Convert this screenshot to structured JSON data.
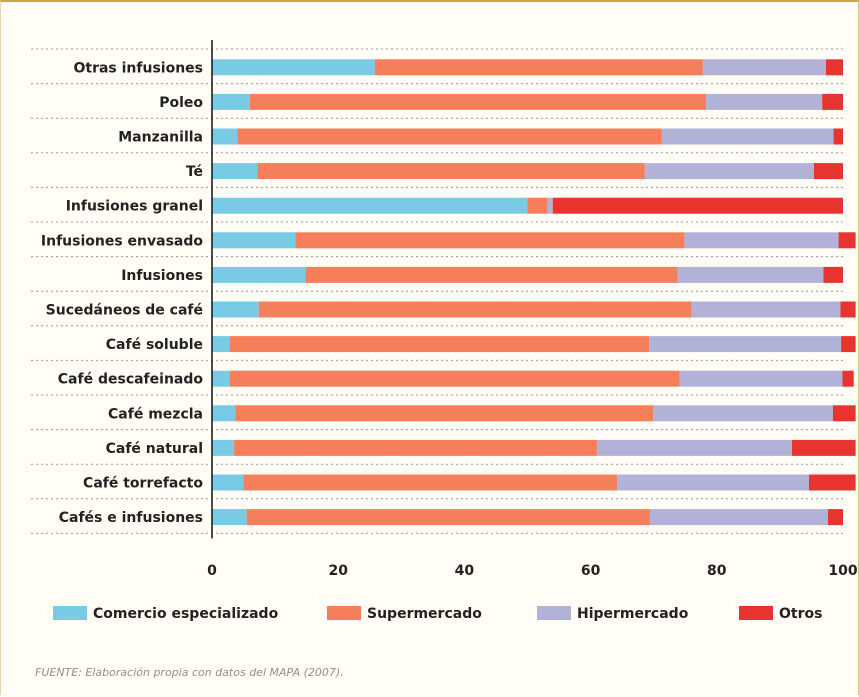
{
  "chart_data": {
    "type": "bar",
    "orientation": "horizontal",
    "stacked": true,
    "categories": [
      "Otras infusiones",
      "Poleo",
      "Manzanilla",
      "Té",
      "Infusiones granel",
      "Infusiones envasado",
      "Infusiones",
      "Sucedáneos de café",
      "Café soluble",
      "Café descafeinado",
      "Café mezcla",
      "Café natural",
      "Café torrefacto",
      "Cafés e infusiones"
    ],
    "series": [
      {
        "name": "Comercio especializado",
        "color": "#79cbe5",
        "values": [
          25.8,
          6.0,
          4.0,
          7.2,
          50.0,
          13.2,
          14.8,
          7.4,
          2.8,
          2.8,
          3.7,
          3.5,
          5.0,
          5.5
        ]
      },
      {
        "name": "Supermercado",
        "color": "#f47f5a",
        "values": [
          52.0,
          72.3,
          67.3,
          61.4,
          3.2,
          61.7,
          59.0,
          68.6,
          66.5,
          71.3,
          66.2,
          57.5,
          59.2,
          63.9
        ]
      },
      {
        "name": "Hipermercado",
        "color": "#b2b2d8",
        "values": [
          19.5,
          18.4,
          27.2,
          26.8,
          0.8,
          24.4,
          23.1,
          23.6,
          30.4,
          25.8,
          28.5,
          30.9,
          30.4,
          28.2
        ]
      },
      {
        "name": "Otros",
        "color": "#e8342e",
        "values": [
          2.7,
          3.3,
          1.5,
          4.6,
          46.0,
          2.7,
          3.1,
          2.4,
          2.3,
          1.8,
          3.6,
          10.1,
          7.4,
          2.4
        ]
      }
    ],
    "xlim": [
      0,
      100
    ],
    "xticks": [
      "0",
      "20",
      "40",
      "60",
      "80",
      "100"
    ],
    "grid": "dotted horizontal separators",
    "legend_position": "bottom"
  },
  "source_note": "FUENTE: Elaboración propia con datos del MAPA (2007)."
}
